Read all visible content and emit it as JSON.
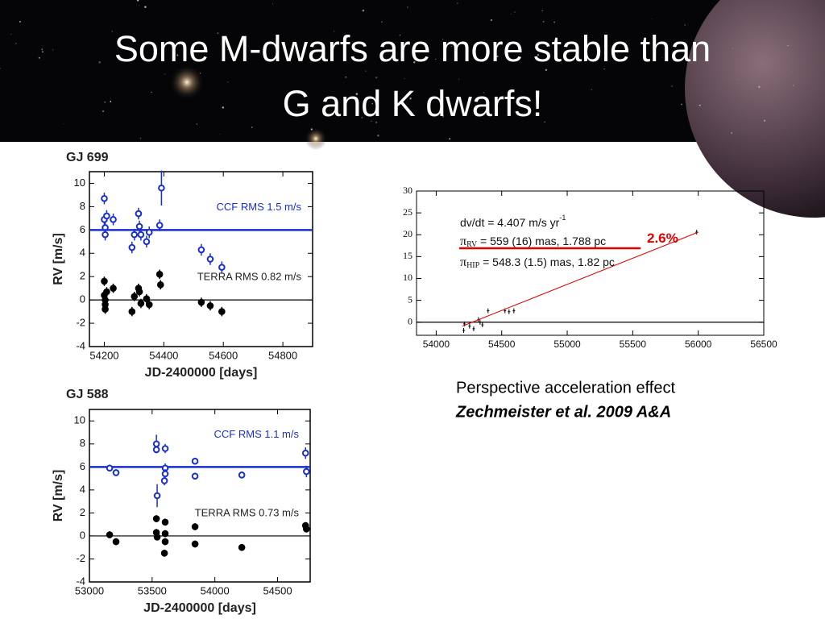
{
  "title_lines": [
    "Some M-dwarfs are more stable than",
    "G and K dwarfs!"
  ],
  "caption": [
    "Perspective acceleration effect",
    "Zechmeister et al. 2009 A&A"
  ],
  "chart_data": [
    {
      "type": "scatter",
      "title": "GJ 699",
      "xlabel": "JD-2400000 [days]",
      "ylabel": "RV [m/s]",
      "xlim": [
        54150,
        54900
      ],
      "xticks": [
        54200,
        54400,
        54600,
        54800
      ],
      "ylim": [
        -4,
        11
      ],
      "yticks": [
        -4,
        -2,
        0,
        2,
        4,
        6,
        8,
        10
      ],
      "hlines": [
        {
          "value": 6,
          "color": "#1a2fd0",
          "label": "CCF RMS 1.5 m/s"
        },
        {
          "value": 0,
          "color": "#000000",
          "label": "TERRA RMS 0.82 m/s"
        }
      ],
      "series": [
        {
          "name": "CCF",
          "color": "#1a2fd0",
          "marker": "open",
          "x": [
            54200,
            54200,
            54203,
            54203,
            54208,
            54230,
            54293,
            54301,
            54315,
            54318,
            54323,
            54342,
            54351,
            54386,
            54392,
            54526,
            54556,
            54595
          ],
          "values": [
            8.7,
            6.9,
            6.2,
            5.6,
            7.2,
            6.9,
            4.5,
            5.6,
            7.4,
            6.3,
            5.6,
            5.0,
            5.8,
            6.4,
            9.6,
            4.3,
            3.5,
            2.8
          ],
          "errors": [
            0.5,
            0.5,
            0.5,
            0.5,
            0.5,
            0.5,
            0.5,
            0.5,
            0.5,
            0.5,
            0.5,
            0.5,
            0.5,
            0.5,
            1.5,
            0.5,
            0.5,
            0.5
          ]
        },
        {
          "name": "TERRA",
          "color": "#000000",
          "marker": "filled",
          "x": [
            54200,
            54200,
            54203,
            54203,
            54203,
            54208,
            54230,
            54293,
            54301,
            54315,
            54318,
            54323,
            54342,
            54351,
            54386,
            54389,
            54526,
            54556,
            54595
          ],
          "values": [
            1.6,
            0.4,
            0,
            -0.4,
            -0.8,
            0.7,
            1.0,
            -1.0,
            0.3,
            1.0,
            0.7,
            -0.3,
            0.1,
            -0.4,
            2.2,
            1.3,
            -0.2,
            -0.5,
            -1.0
          ],
          "errors": [
            0.4,
            0.4,
            0.4,
            0.4,
            0.4,
            0.4,
            0.4,
            0.4,
            0.4,
            0.4,
            0.4,
            0.4,
            0.4,
            0.4,
            0.4,
            0.4,
            0.4,
            0.4,
            0.4
          ]
        }
      ]
    },
    {
      "type": "scatter",
      "title": "GJ 588",
      "xlabel": "JD-2400000 [days]",
      "ylabel": "RV [m/s]",
      "xlim": [
        53000,
        54760
      ],
      "xticks": [
        53000,
        53500,
        54000,
        54500
      ],
      "ylim": [
        -4,
        11
      ],
      "yticks": [
        -4,
        -2,
        0,
        2,
        4,
        6,
        8,
        10
      ],
      "hlines": [
        {
          "value": 6,
          "color": "#1a2fd0",
          "label": "CCF RMS 1.1 m/s"
        },
        {
          "value": 0,
          "color": "#000000",
          "label": "TERRA RMS 0.73 m/s"
        }
      ],
      "series": [
        {
          "name": "CCF",
          "color": "#1a2fd0",
          "marker": "open",
          "x": [
            53161,
            53212,
            53534,
            53534,
            53540,
            53604,
            53604,
            53604,
            53598,
            53842,
            53842,
            54215,
            54723,
            54730
          ],
          "values": [
            5.9,
            5.5,
            8.0,
            7.5,
            3.5,
            7.6,
            5.9,
            5.4,
            4.8,
            6.5,
            5.2,
            5.3,
            7.2,
            5.6
          ],
          "errors": [
            0.3,
            0.3,
            0.8,
            0.3,
            1.0,
            0.4,
            0.4,
            0.4,
            0.4,
            0.3,
            0.3,
            0.3,
            0.5,
            0.5
          ]
        },
        {
          "name": "TERRA",
          "color": "#000000",
          "marker": "filled",
          "x": [
            53161,
            53212,
            53534,
            53534,
            53540,
            53604,
            53604,
            53604,
            53598,
            53842,
            53842,
            54215,
            54723,
            54730
          ],
          "values": [
            0.1,
            -0.5,
            1.5,
            0.3,
            -0.1,
            1.2,
            0.2,
            -0.5,
            -1.5,
            0.8,
            -0.7,
            -1.0,
            0.9,
            0.6
          ],
          "errors": [
            0.3,
            0.3,
            0.3,
            0.3,
            0.3,
            0.3,
            0.3,
            0.3,
            0.3,
            0.3,
            0.3,
            0.3,
            0.3,
            0.3
          ]
        }
      ]
    },
    {
      "type": "scatter",
      "xlim": [
        53850,
        56500
      ],
      "xticks": [
        54000,
        54500,
        55000,
        55500,
        56000,
        56500
      ],
      "ylim": [
        -3,
        30
      ],
      "yticks": [
        0,
        5,
        10,
        15,
        20,
        25,
        30
      ],
      "hlines": [
        {
          "value": 0,
          "color": "#000000"
        }
      ],
      "annotations": [
        {
          "text": "dv/dt = 4.407 m/s yr",
          "sup": "-1"
        },
        {
          "symbol": "π",
          "sub": "RV",
          "text": " = 559 (16) mas, 1.788 pc"
        },
        {
          "symbol": "π",
          "sub": "HIP",
          "text": " = 548.3 (1.5) mas, 1.82 pc"
        },
        {
          "text": "2.6%",
          "color": "#e00000"
        }
      ],
      "series": [
        {
          "name": "RV",
          "color": "#000000",
          "marker": "plus",
          "x": [
            54210,
            54215,
            54255,
            54286,
            54323,
            54335,
            54353,
            54396,
            54525,
            54556,
            54593,
            55988
          ],
          "values": [
            -1.9,
            -0.4,
            -0.9,
            -1.5,
            0.6,
            0,
            -0.6,
            2.6,
            2.6,
            2.4,
            2.6,
            20.6
          ]
        },
        {
          "name": "fit",
          "color": "#e00000",
          "marker": "line",
          "x": [
            54200,
            56000
          ],
          "values": [
            -0.9,
            20.6
          ]
        }
      ]
    }
  ]
}
